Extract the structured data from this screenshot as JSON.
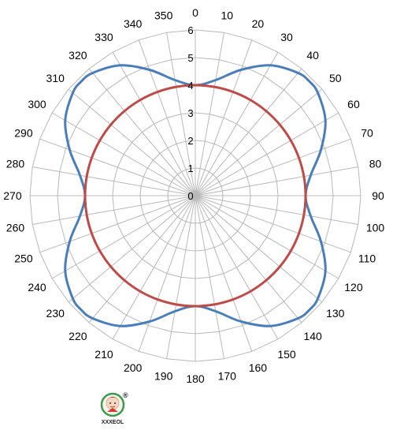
{
  "chart_data": {
    "type": "polar-line",
    "title": "",
    "theta_labels": [
      "0",
      "10",
      "20",
      "30",
      "40",
      "50",
      "60",
      "70",
      "80",
      "90",
      "100",
      "110",
      "120",
      "130",
      "140",
      "150",
      "160",
      "170",
      "180",
      "190",
      "200",
      "210",
      "220",
      "230",
      "240",
      "250",
      "260",
      "270",
      "280",
      "290",
      "300",
      "310",
      "320",
      "330",
      "340",
      "350"
    ],
    "r_tick_labels": [
      "0",
      "1",
      "2",
      "3",
      "4",
      "5",
      "6"
    ],
    "rlim": [
      0,
      6
    ],
    "grid": true,
    "legend": "none",
    "series": [
      {
        "color": "#4a7ebb",
        "theta": [
          0,
          10,
          20,
          30,
          40,
          45,
          50,
          60,
          70,
          80,
          90,
          100,
          110,
          120,
          130,
          135,
          140,
          150,
          160,
          170,
          180,
          190,
          200,
          210,
          220,
          225,
          230,
          240,
          250,
          260,
          270,
          280,
          290,
          300,
          310,
          315,
          320,
          330,
          340,
          350
        ],
        "r": [
          4.0,
          4.25,
          4.85,
          5.45,
          5.8,
          5.85,
          5.8,
          5.45,
          4.85,
          4.25,
          4.0,
          4.25,
          4.85,
          5.45,
          5.8,
          5.85,
          5.8,
          5.45,
          4.85,
          4.25,
          4.0,
          4.25,
          4.85,
          5.45,
          5.8,
          5.85,
          5.8,
          5.45,
          4.85,
          4.25,
          4.0,
          4.25,
          4.85,
          5.45,
          5.8,
          5.85,
          5.8,
          5.45,
          4.85,
          4.25
        ]
      },
      {
        "color": "#be4b48",
        "theta": [
          0,
          10,
          20,
          30,
          40,
          50,
          60,
          70,
          80,
          90,
          100,
          110,
          120,
          130,
          140,
          150,
          160,
          170,
          180,
          190,
          200,
          210,
          220,
          230,
          240,
          250,
          260,
          270,
          280,
          290,
          300,
          310,
          320,
          330,
          340,
          350
        ],
        "r": [
          4.0,
          4.0,
          4.0,
          4.0,
          4.0,
          4.0,
          4.0,
          4.0,
          4.0,
          4.0,
          4.0,
          4.0,
          4.0,
          4.0,
          4.0,
          4.0,
          4.0,
          4.0,
          4.0,
          4.0,
          4.0,
          4.0,
          4.0,
          4.0,
          4.0,
          4.0,
          4.0,
          4.0,
          4.0,
          4.0,
          4.0,
          4.0,
          4.0,
          4.0,
          4.0,
          4.0
        ]
      }
    ]
  },
  "logo": {
    "text": "XXXEOL",
    "mark": "®"
  }
}
